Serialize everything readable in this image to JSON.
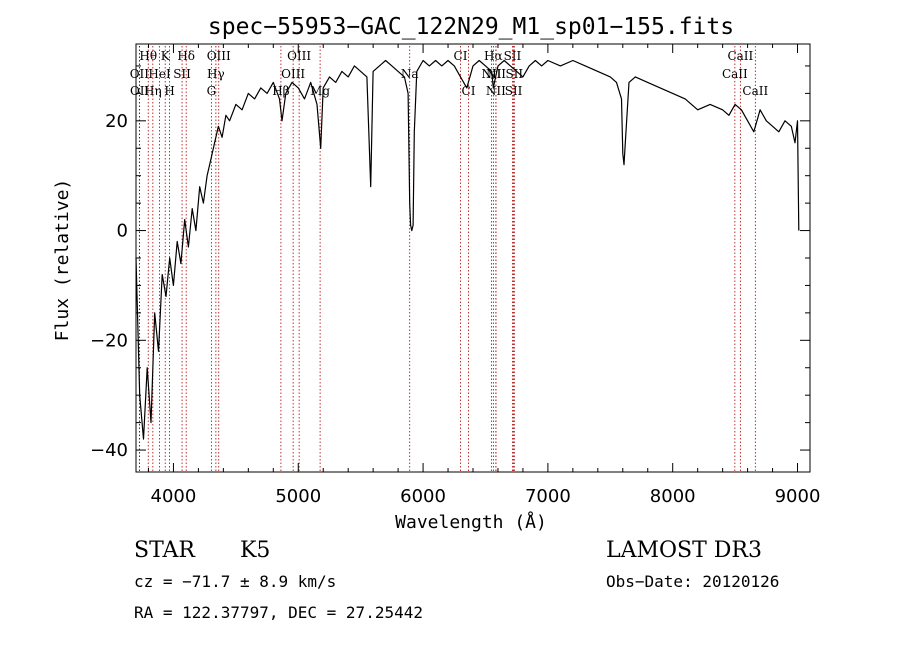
{
  "chart_data": {
    "type": "line",
    "title": "spec−55953−GAC_122N29_M1_sp01−155.fits",
    "xlabel": "Wavelength (Å)",
    "ylabel": "Flux (relative)",
    "xlim": [
      3700,
      9100
    ],
    "ylim": [
      -44,
      34
    ],
    "xticks": [
      4000,
      5000,
      6000,
      7000,
      8000,
      9000
    ],
    "xtick_labels": [
      "4000",
      "5000",
      "6000",
      "7000",
      "8000",
      "9000"
    ],
    "yticks": [
      -40,
      -20,
      0,
      20
    ],
    "ytick_labels": [
      "−40",
      "−20",
      "0",
      "20"
    ],
    "grid": false,
    "series": [
      {
        "name": "spectrum",
        "x": [
          3700,
          3730,
          3760,
          3790,
          3820,
          3850,
          3880,
          3910,
          3940,
          3970,
          4000,
          4030,
          4060,
          4090,
          4120,
          4150,
          4180,
          4210,
          4240,
          4270,
          4300,
          4330,
          4360,
          4390,
          4420,
          4450,
          4500,
          4550,
          4600,
          4650,
          4700,
          4750,
          4800,
          4850,
          4870,
          4900,
          4950,
          5000,
          5050,
          5100,
          5150,
          5180,
          5200,
          5250,
          5300,
          5350,
          5400,
          5450,
          5500,
          5550,
          5580,
          5600,
          5650,
          5700,
          5750,
          5800,
          5850,
          5880,
          5893,
          5900,
          5910,
          5920,
          5930,
          5950,
          6000,
          6050,
          6100,
          6150,
          6200,
          6250,
          6300,
          6350,
          6400,
          6450,
          6500,
          6550,
          6563,
          6600,
          6650,
          6700,
          6750,
          6800,
          6850,
          6900,
          6950,
          7000,
          7100,
          7200,
          7300,
          7400,
          7500,
          7550,
          7590,
          7600,
          7610,
          7620,
          7650,
          7700,
          7800,
          7900,
          8000,
          8100,
          8200,
          8300,
          8400,
          8450,
          8500,
          8550,
          8600,
          8650,
          8700,
          8750,
          8800,
          8850,
          8900,
          8950,
          8980,
          9000,
          9010
        ],
        "y": [
          -5,
          -30,
          -38,
          -25,
          -35,
          -15,
          -22,
          -8,
          -12,
          -5,
          -10,
          -2,
          -6,
          2,
          -3,
          4,
          0,
          8,
          5,
          10,
          13,
          16,
          19,
          17,
          21,
          20,
          23,
          22,
          25,
          24,
          26,
          25,
          27,
          24,
          20,
          25,
          27,
          26,
          24,
          27,
          23,
          15,
          26,
          28,
          27,
          29,
          28,
          30,
          29,
          28,
          8,
          29,
          30,
          31,
          30,
          29,
          28,
          25,
          5,
          1,
          0,
          1,
          18,
          29,
          31,
          30,
          31,
          30,
          31,
          30,
          28,
          26,
          30,
          31,
          30,
          29,
          26,
          30,
          31,
          30,
          29,
          28,
          30,
          31,
          30,
          31,
          30,
          31,
          30,
          29,
          28,
          27,
          24,
          14,
          12,
          16,
          27,
          28,
          27,
          26,
          25,
          24,
          22,
          23,
          22,
          21,
          23,
          22,
          20,
          18,
          22,
          20,
          19,
          18,
          20,
          19,
          16,
          20,
          0
        ]
      }
    ],
    "line_markers": [
      {
        "label": "Hθ",
        "x": 3798,
        "row": 1
      },
      {
        "label": "K",
        "x": 3934,
        "row": 1
      },
      {
        "label": "Hδ",
        "x": 4102,
        "row": 1
      },
      {
        "label": "OIII",
        "x": 4363,
        "row": 1
      },
      {
        "label": "OIII",
        "x": 5007,
        "row": 1
      },
      {
        "label": "CI",
        "x": 6300,
        "row": 1
      },
      {
        "label": "Hα",
        "x": 6563,
        "row": 1
      },
      {
        "label": "SII",
        "x": 6716,
        "row": 1
      },
      {
        "label": "CaII",
        "x": 8542,
        "row": 1
      },
      {
        "label": "OII",
        "x": 3727,
        "row": 2
      },
      {
        "label": "HeI",
        "x": 3889,
        "row": 2
      },
      {
        "label": "SII",
        "x": 4069,
        "row": 2
      },
      {
        "label": "Hγ",
        "x": 4340,
        "row": 2
      },
      {
        "label": "OIII",
        "x": 4959,
        "row": 2
      },
      {
        "label": "Na",
        "x": 5893,
        "row": 2
      },
      {
        "label": "NII",
        "x": 6548,
        "row": 2
      },
      {
        "label": "NII",
        "x": 6584,
        "row": 2
      },
      {
        "label": "SII",
        "x": 6731,
        "row": 2
      },
      {
        "label": "CaII",
        "x": 8498,
        "row": 2
      },
      {
        "label": "OII",
        "x": 3729,
        "row": 3
      },
      {
        "label": "Hη",
        "x": 3835,
        "row": 3
      },
      {
        "label": "H",
        "x": 3969,
        "row": 3
      },
      {
        "label": "G",
        "x": 4304,
        "row": 3
      },
      {
        "label": "Hβ",
        "x": 4861,
        "row": 3
      },
      {
        "label": "Mg",
        "x": 5175,
        "row": 3
      },
      {
        "label": "CI",
        "x": 6364,
        "row": 3
      },
      {
        "label": "NII",
        "x": 6583,
        "row": 3
      },
      {
        "label": "SII",
        "x": 6725,
        "row": 3
      },
      {
        "label": "CaII",
        "x": 8662,
        "row": 3
      }
    ]
  },
  "info": {
    "object_type": "STAR",
    "subclass": "K5",
    "survey": "LAMOST DR3",
    "cz": "cz = −71.7 ± 8.9 km/s",
    "obs_date": "Obs−Date: 20120126",
    "coords": "RA = 122.37797, DEC =  27.25442"
  }
}
